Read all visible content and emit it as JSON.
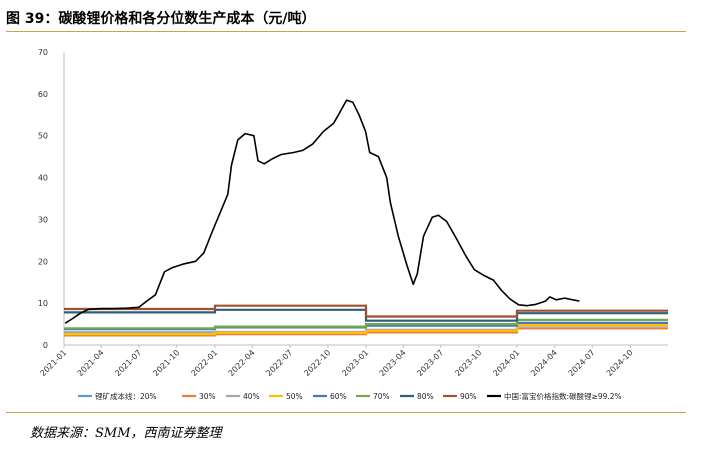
{
  "header": {
    "title": "图 39：碳酸锂价格和各分位数生产成本（元/吨）"
  },
  "footer": {
    "source": "数据来源：SMM，西南证券整理"
  },
  "chart_data": {
    "type": "line",
    "title": "图 39：碳酸锂价格和各分位数生产成本（元/吨）",
    "xlabel": "",
    "ylabel": "",
    "ylim": [
      0,
      70
    ],
    "yticks": [
      "0",
      "10",
      "20",
      "30",
      "40",
      "50",
      "60",
      "70"
    ],
    "xticks": [
      "2021-01",
      "2021-04",
      "2021-07",
      "2021-10",
      "2022-01",
      "2022-04",
      "2022-07",
      "2022-10",
      "2023-01",
      "2023-04",
      "2023-07",
      "2023-10",
      "2024-01",
      "2024-04",
      "2024-07",
      "2024-10"
    ],
    "xlim": [
      "2021-01-01",
      "2024-12-31"
    ],
    "grid": false,
    "legend_position": "bottom",
    "cost_series": [
      {
        "name": "锂矿成本线：20%",
        "color": "#5b9bd5",
        "steps": [
          {
            "from": "2021-01-01",
            "to": "2023-12-31",
            "value": 3.0
          },
          {
            "from": "2024-01-01",
            "to": "2024-12-31",
            "value": 5.0
          }
        ]
      },
      {
        "name": "30%",
        "color": "#ed7d31",
        "steps": [
          {
            "from": "2021-01-01",
            "to": "2022-01-01",
            "value": 2.3
          },
          {
            "from": "2022-01-01",
            "to": "2023-01-01",
            "value": 2.6
          },
          {
            "from": "2023-01-01",
            "to": "2024-01-01",
            "value": 3.0
          },
          {
            "from": "2024-01-01",
            "to": "2024-12-31",
            "value": 4.0
          }
        ]
      },
      {
        "name": "40%",
        "color": "#a5a5a5",
        "steps": [
          {
            "from": "2021-01-01",
            "to": "2022-01-01",
            "value": 2.9
          },
          {
            "from": "2022-01-01",
            "to": "2023-01-01",
            "value": 3.1
          },
          {
            "from": "2023-01-01",
            "to": "2024-01-01",
            "value": 3.6
          },
          {
            "from": "2024-01-01",
            "to": "2024-12-31",
            "value": 4.6
          }
        ]
      },
      {
        "name": "50%",
        "color": "#ffc000",
        "steps": [
          {
            "from": "2021-01-01",
            "to": "2022-01-01",
            "value": 2.6
          },
          {
            "from": "2022-01-01",
            "to": "2023-01-01",
            "value": 2.9
          },
          {
            "from": "2023-01-01",
            "to": "2024-01-01",
            "value": 3.4
          },
          {
            "from": "2024-01-01",
            "to": "2024-12-31",
            "value": 4.8
          }
        ]
      },
      {
        "name": "60%",
        "color": "#4472c4",
        "steps": [
          {
            "from": "2021-01-01",
            "to": "2022-01-01",
            "value": 3.8
          },
          {
            "from": "2022-01-01",
            "to": "2023-01-01",
            "value": 4.2
          },
          {
            "from": "2023-01-01",
            "to": "2024-01-01",
            "value": 4.6
          },
          {
            "from": "2024-01-01",
            "to": "2024-12-31",
            "value": 5.3
          }
        ]
      },
      {
        "name": "70%",
        "color": "#70ad47",
        "steps": [
          {
            "from": "2021-01-01",
            "to": "2022-01-01",
            "value": 4.0
          },
          {
            "from": "2022-01-01",
            "to": "2023-01-01",
            "value": 4.4
          },
          {
            "from": "2023-01-01",
            "to": "2024-01-01",
            "value": 5.0
          },
          {
            "from": "2024-01-01",
            "to": "2024-12-31",
            "value": 6.0
          }
        ]
      },
      {
        "name": "80%",
        "color": "#2f5d7c",
        "steps": [
          {
            "from": "2021-01-01",
            "to": "2022-01-01",
            "value": 7.8
          },
          {
            "from": "2022-01-01",
            "to": "2023-01-01",
            "value": 8.4
          },
          {
            "from": "2023-01-01",
            "to": "2024-01-01",
            "value": 5.8
          },
          {
            "from": "2024-01-01",
            "to": "2024-12-31",
            "value": 7.6
          }
        ]
      },
      {
        "name": "90%",
        "color": "#a0522d",
        "steps": [
          {
            "from": "2021-01-01",
            "to": "2022-01-01",
            "value": 8.6
          },
          {
            "from": "2022-01-01",
            "to": "2023-01-01",
            "value": 9.4
          },
          {
            "from": "2023-01-01",
            "to": "2024-01-01",
            "value": 6.8
          },
          {
            "from": "2024-01-01",
            "to": "2024-12-31",
            "value": 8.2
          }
        ]
      }
    ],
    "price_series": {
      "name": "中国:富宝价格指数:碳酸锂≥99.2%",
      "color": "#000000",
      "points": [
        [
          "2021-01-04",
          5.2
        ],
        [
          "2021-01-20",
          6.2
        ],
        [
          "2021-02-10",
          7.6
        ],
        [
          "2021-03-01",
          8.5
        ],
        [
          "2021-04-01",
          8.7
        ],
        [
          "2021-05-01",
          8.7
        ],
        [
          "2021-06-01",
          8.8
        ],
        [
          "2021-07-01",
          9.0
        ],
        [
          "2021-07-20",
          10.5
        ],
        [
          "2021-08-10",
          12.0
        ],
        [
          "2021-09-01",
          17.5
        ],
        [
          "2021-09-20",
          18.5
        ],
        [
          "2021-10-15",
          19.3
        ],
        [
          "2021-11-15",
          20.0
        ],
        [
          "2021-12-05",
          22.0
        ],
        [
          "2021-12-25",
          27.0
        ],
        [
          "2022-01-15",
          32.0
        ],
        [
          "2022-02-01",
          36.0
        ],
        [
          "2022-02-10",
          43.0
        ],
        [
          "2022-02-25",
          49.0
        ],
        [
          "2022-03-15",
          50.5
        ],
        [
          "2022-04-05",
          50.0
        ],
        [
          "2022-04-15",
          44.0
        ],
        [
          "2022-04-30",
          43.3
        ],
        [
          "2022-05-20",
          44.5
        ],
        [
          "2022-06-10",
          45.5
        ],
        [
          "2022-07-10",
          46.0
        ],
        [
          "2022-08-01",
          46.5
        ],
        [
          "2022-08-25",
          48.0
        ],
        [
          "2022-09-20",
          51.0
        ],
        [
          "2022-10-15",
          53.0
        ],
        [
          "2022-11-01",
          56.0
        ],
        [
          "2022-11-15",
          58.5
        ],
        [
          "2022-11-30",
          58.0
        ],
        [
          "2022-12-15",
          55.0
        ],
        [
          "2022-12-31",
          51.0
        ],
        [
          "2023-01-10",
          46.0
        ],
        [
          "2023-01-31",
          45.0
        ],
        [
          "2023-02-20",
          40.0
        ],
        [
          "2023-03-01",
          34.0
        ],
        [
          "2023-03-20",
          26.0
        ],
        [
          "2023-04-10",
          19.0
        ],
        [
          "2023-04-25",
          14.5
        ],
        [
          "2023-05-05",
          17.0
        ],
        [
          "2023-05-20",
          26.0
        ],
        [
          "2023-06-10",
          30.5
        ],
        [
          "2023-06-25",
          31.0
        ],
        [
          "2023-07-15",
          29.5
        ],
        [
          "2023-08-10",
          25.0
        ],
        [
          "2023-09-01",
          21.0
        ],
        [
          "2023-09-20",
          18.0
        ],
        [
          "2023-10-15",
          16.5
        ],
        [
          "2023-11-05",
          15.5
        ],
        [
          "2023-11-25",
          13.0
        ],
        [
          "2023-12-15",
          11.0
        ],
        [
          "2024-01-05",
          9.6
        ],
        [
          "2024-01-25",
          9.4
        ],
        [
          "2024-02-15",
          9.7
        ],
        [
          "2024-03-10",
          10.5
        ],
        [
          "2024-03-20",
          11.5
        ],
        [
          "2024-04-05",
          10.8
        ],
        [
          "2024-04-25",
          11.2
        ],
        [
          "2024-05-15",
          10.8
        ],
        [
          "2024-05-31",
          10.5
        ]
      ]
    }
  }
}
